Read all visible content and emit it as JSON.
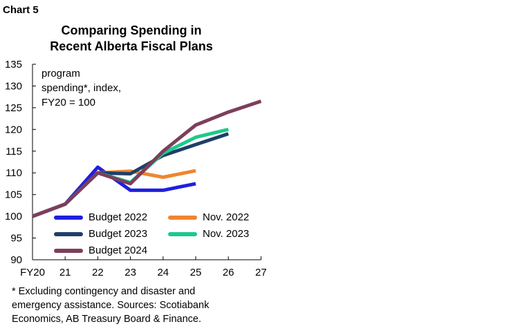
{
  "header": {
    "chart_label": "Chart 5",
    "title_line1": "Comparing Spending in",
    "title_line2": "Recent Alberta Fiscal Plans",
    "unit_note": [
      "program",
      "spending*, index,",
      "FY20 = 100"
    ]
  },
  "footnote": [
    "* Excluding contingency and disaster and",
    "emergency assistance. Sources: Scotiabank",
    "Economics, AB Treasury Board & Finance."
  ],
  "chart_data": {
    "type": "line",
    "x": [
      "FY20",
      "21",
      "22",
      "23",
      "24",
      "25",
      "26",
      "27"
    ],
    "ylim": [
      90,
      135
    ],
    "yticks": [
      90,
      95,
      100,
      105,
      110,
      115,
      120,
      125,
      130,
      135
    ],
    "grid": false,
    "legend_position": "lower-center",
    "series": [
      {
        "name": "Budget 2022",
        "color": "#1f1fe0",
        "values": [
          100,
          102.8,
          111.3,
          106,
          106,
          107.5,
          null,
          null
        ]
      },
      {
        "name": "Nov. 2022",
        "color": "#f08530",
        "values": [
          100,
          102.8,
          110,
          110.4,
          109,
          110.5,
          null,
          null
        ]
      },
      {
        "name": "Budget 2023",
        "color": "#1f3f68",
        "values": [
          100,
          102.8,
          110,
          109.8,
          114,
          116.5,
          119,
          null
        ]
      },
      {
        "name": "Nov. 2023",
        "color": "#1ec98c",
        "values": [
          100,
          102.8,
          110,
          107.8,
          114.5,
          118.2,
          120,
          null
        ]
      },
      {
        "name": "Budget 2024",
        "color": "#7d3e5c",
        "values": [
          100,
          102.8,
          110,
          107.5,
          115,
          121,
          124,
          126.5
        ]
      }
    ]
  }
}
